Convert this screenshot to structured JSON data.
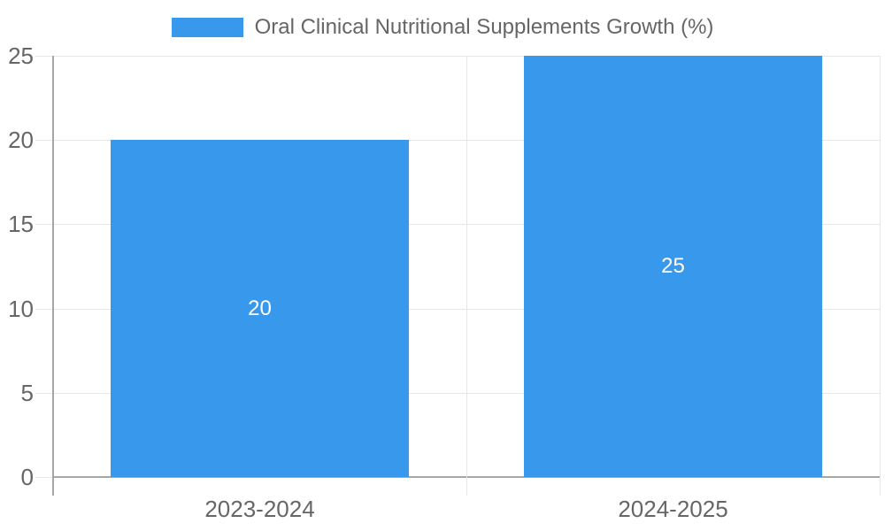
{
  "legend": {
    "label": "Oral Clinical Nutritional Supplements Growth (%)"
  },
  "chart_data": {
    "type": "bar",
    "title": "Oral Clinical Nutritional Supplements Growth (%)",
    "categories": [
      "2023-2024",
      "2024-2025"
    ],
    "series": [
      {
        "name": "Oral Clinical Nutritional Supplements Growth (%)",
        "values": [
          20,
          25
        ]
      }
    ],
    "data_labels": [
      "20",
      "25"
    ],
    "xlabel": "",
    "ylabel": "",
    "ylim": [
      0,
      25
    ],
    "yticks": [
      0,
      5,
      10,
      15,
      20,
      25
    ],
    "grid": true,
    "legend_position": "top",
    "colors": {
      "bar": "#3899ec",
      "grid": "#e6e6e6",
      "axis": "#a6a6a6",
      "text": "#666666",
      "bar_label": "#ffffff",
      "background": "#ffffff"
    }
  }
}
